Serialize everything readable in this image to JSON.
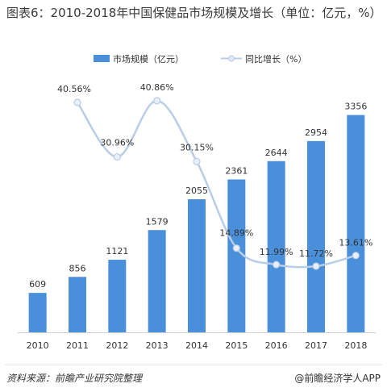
{
  "title": "图表6：2010-2018年中国保健品市场规模及增长（单位：亿元，%）",
  "source": "资料来源：前瞻产业研究院整理",
  "credit": "@前瞻经济学人APP",
  "colors": {
    "bar": "#4a8fd9",
    "line": "#b9cde6",
    "text": "#333333"
  },
  "chart_data": {
    "type": "bar",
    "categories": [
      "2010",
      "2011",
      "2012",
      "2013",
      "2014",
      "2015",
      "2016",
      "2017",
      "2018"
    ],
    "series": [
      {
        "name": "市场规模（亿元）",
        "type": "bar",
        "values": [
          609,
          856,
          1121,
          1579,
          2055,
          2361,
          2644,
          2954,
          3356
        ],
        "labels": [
          "609",
          "856",
          "1121",
          "1579",
          "2055",
          "2361",
          "2644",
          "2954",
          "3356"
        ]
      },
      {
        "name": "同比增长（%）",
        "type": "line",
        "x": [
          "2011",
          "2012",
          "2013",
          "2014",
          "2015",
          "2016",
          "2017",
          "2018"
        ],
        "values": [
          40.56,
          30.96,
          40.86,
          30.15,
          14.89,
          11.99,
          11.72,
          13.61
        ],
        "labels": [
          "40.56%",
          "30.96%",
          "40.86%",
          "30.15%",
          "14.89%",
          "11.99%",
          "11.72%",
          "13.61%"
        ]
      }
    ],
    "legend_position": "top",
    "grid": false
  }
}
